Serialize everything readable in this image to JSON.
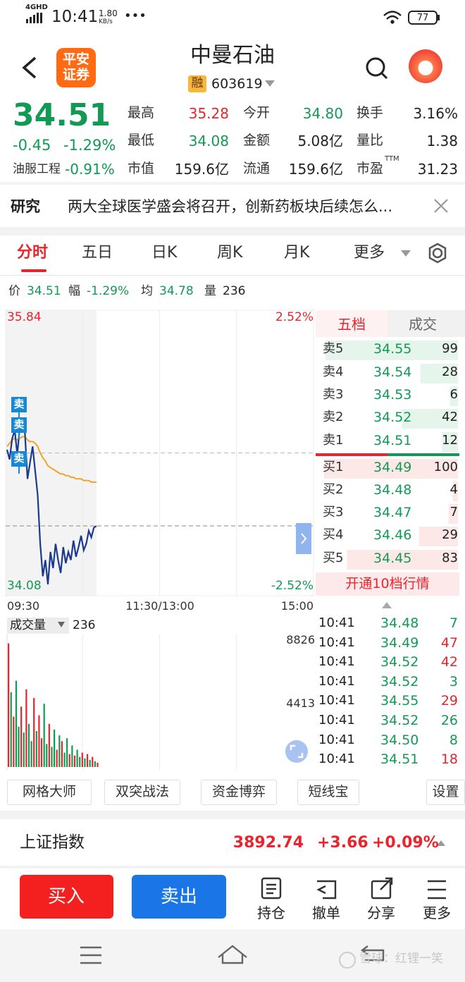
{
  "status_bar": {
    "network": "4GHD",
    "time": "10:41",
    "speed": "1.80",
    "speed_unit": "KB/s",
    "battery": "77"
  },
  "header": {
    "logo": [
      "平安",
      "证券"
    ],
    "title": "中曼石油",
    "badge": "融",
    "code": "603619"
  },
  "quote": {
    "price": "34.51",
    "change": "-0.45",
    "change_pct": "-1.29%",
    "sector": "油服工程",
    "sector_pct": "-0.91%",
    "stats": [
      {
        "label": "最高",
        "value": "35.28",
        "tone": "up"
      },
      {
        "label": "今开",
        "value": "34.80",
        "tone": "down"
      },
      {
        "label": "换手",
        "value": "3.16%"
      },
      {
        "label": "最低",
        "value": "34.08",
        "tone": "down"
      },
      {
        "label": "金额",
        "value": "5.08亿"
      },
      {
        "label": "量比",
        "value": "1.38"
      },
      {
        "label": "市值",
        "value": "159.6亿"
      },
      {
        "label": "流通",
        "value": "159.6亿"
      },
      {
        "label": "市盈",
        "sup": "TTM",
        "value": "31.23"
      }
    ]
  },
  "news": {
    "tag": "研究",
    "headline": "两大全球医学盛会将召开，创新药板块后续怎么..."
  },
  "tabs": {
    "items": [
      "分时",
      "五日",
      "日K",
      "周K",
      "月K",
      "更多"
    ],
    "active": 0
  },
  "info": [
    {
      "label": "价",
      "value": "34.51",
      "tone": "down"
    },
    {
      "label": "幅",
      "value": "-1.29%",
      "tone": "down"
    },
    {
      "label": "均",
      "value": "34.78",
      "tone": "down"
    },
    {
      "label": "量",
      "value": "236"
    }
  ],
  "price_chart": {
    "type": "line",
    "ylim": [
      34.08,
      35.84
    ],
    "yticks": [
      34.08,
      35.84
    ],
    "y2lim": [
      -2.52,
      2.52
    ],
    "y2ticks": [
      {
        "value": -2.52,
        "label": "-2.52%"
      },
      {
        "value": 2.52,
        "label": "2.52%"
      }
    ],
    "xticks": [
      "09:30",
      "11:30/13:00",
      "15:00"
    ],
    "series": [
      {
        "color": "#1c3a8c",
        "values": [
          34.98,
          34.92,
          35.05,
          35.1,
          34.95,
          35.12,
          35.15,
          35.08,
          34.8,
          34.9,
          35.0,
          34.85,
          34.7,
          34.4,
          34.2,
          34.3,
          34.15,
          34.35,
          34.25,
          34.4,
          34.3,
          34.22,
          34.38,
          34.28,
          34.35,
          34.3,
          34.42,
          34.32,
          34.38,
          34.45,
          34.36,
          34.4,
          34.48,
          34.44,
          34.5,
          34.51
        ]
      },
      {
        "color": "#f0a52a",
        "values": [
          35.0,
          35.02,
          35.04,
          35.05,
          35.04,
          35.05,
          35.06,
          35.06,
          35.04,
          35.03,
          35.03,
          35.02,
          35.0,
          34.96,
          34.93,
          34.91,
          34.88,
          34.87,
          34.86,
          34.85,
          34.84,
          34.83,
          34.83,
          34.82,
          34.82,
          34.81,
          34.81,
          34.8,
          34.8,
          34.8,
          34.79,
          34.79,
          34.79,
          34.78,
          34.78,
          34.78
        ]
      }
    ],
    "markers": [
      "卖",
      "卖",
      "卖"
    ]
  },
  "order_book": {
    "tabs": [
      "五档",
      "成交"
    ],
    "asks": [
      {
        "label": "卖5",
        "price": "34.55",
        "volume": 99
      },
      {
        "label": "卖4",
        "price": "34.54",
        "volume": 28
      },
      {
        "label": "卖3",
        "price": "34.53",
        "volume": 6
      },
      {
        "label": "卖2",
        "price": "34.52",
        "volume": 42
      },
      {
        "label": "卖1",
        "price": "34.51",
        "volume": 12
      }
    ],
    "bids": [
      {
        "label": "买1",
        "price": "34.49",
        "volume": 100
      },
      {
        "label": "买2",
        "price": "34.48",
        "volume": 4
      },
      {
        "label": "买3",
        "price": "34.47",
        "volume": 7
      },
      {
        "label": "买4",
        "price": "34.46",
        "volume": 29
      },
      {
        "label": "买5",
        "price": "34.45",
        "volume": 83
      }
    ],
    "upgrade": "开通10档行情"
  },
  "volume_chart": {
    "type": "bar",
    "title": "成交量",
    "current": "236",
    "ylim": [
      0,
      8826
    ],
    "yticks": [
      4413,
      8826
    ],
    "values": [
      8600,
      5200,
      3500,
      6000,
      2800,
      4200,
      2400,
      5400,
      3000,
      1800,
      4800,
      2500,
      3600,
      2000,
      4400,
      1600,
      3000,
      1400,
      2600,
      1200,
      2200,
      1800,
      1000,
      2000,
      900,
      1500,
      800,
      1200,
      700,
      1000,
      600,
      900,
      500,
      700,
      400,
      300
    ],
    "colors": [
      "#e8252d",
      "#129a55",
      "#e8252d",
      "#129a55",
      "#129a55",
      "#e8252d",
      "#129a55",
      "#e8252d",
      "#129a55",
      "#129a55",
      "#e8252d",
      "#129a55",
      "#e8252d",
      "#e8252d",
      "#129a55",
      "#129a55",
      "#e8252d",
      "#129a55",
      "#129a55",
      "#e8252d",
      "#129a55",
      "#e8252d",
      "#129a55",
      "#129a55",
      "#e8252d",
      "#129a55",
      "#e8252d",
      "#129a55",
      "#129a55",
      "#e8252d",
      "#129a55",
      "#e8252d",
      "#129a55",
      "#e8252d",
      "#129a55",
      "#e8252d"
    ]
  },
  "trades": [
    {
      "time": "10:41",
      "price": "34.48",
      "volume": 7,
      "side": "sell"
    },
    {
      "time": "10:41",
      "price": "34.49",
      "volume": 47,
      "side": "buy"
    },
    {
      "time": "10:41",
      "price": "34.52",
      "volume": 42,
      "side": "buy"
    },
    {
      "time": "10:41",
      "price": "34.52",
      "volume": 3,
      "side": "sell"
    },
    {
      "time": "10:41",
      "price": "34.55",
      "volume": 29,
      "side": "buy"
    },
    {
      "time": "10:41",
      "price": "34.52",
      "volume": 26,
      "side": "sell"
    },
    {
      "time": "10:41",
      "price": "34.50",
      "volume": 8,
      "side": "sell"
    },
    {
      "time": "10:41",
      "price": "34.51",
      "volume": 18,
      "side": "buy"
    }
  ],
  "tools": [
    "网格大师",
    "双突战法",
    "资金博弈",
    "短线宝",
    "设置"
  ],
  "index": {
    "name": "上证指数",
    "value": "3892.74",
    "change": "+3.66",
    "change_pct": "+0.09%"
  },
  "actions": {
    "buy": "买入",
    "sell": "卖出",
    "items": [
      "持仓",
      "撤单",
      "分享",
      "更多"
    ]
  },
  "watermark": "雪球：红锂一笑"
}
